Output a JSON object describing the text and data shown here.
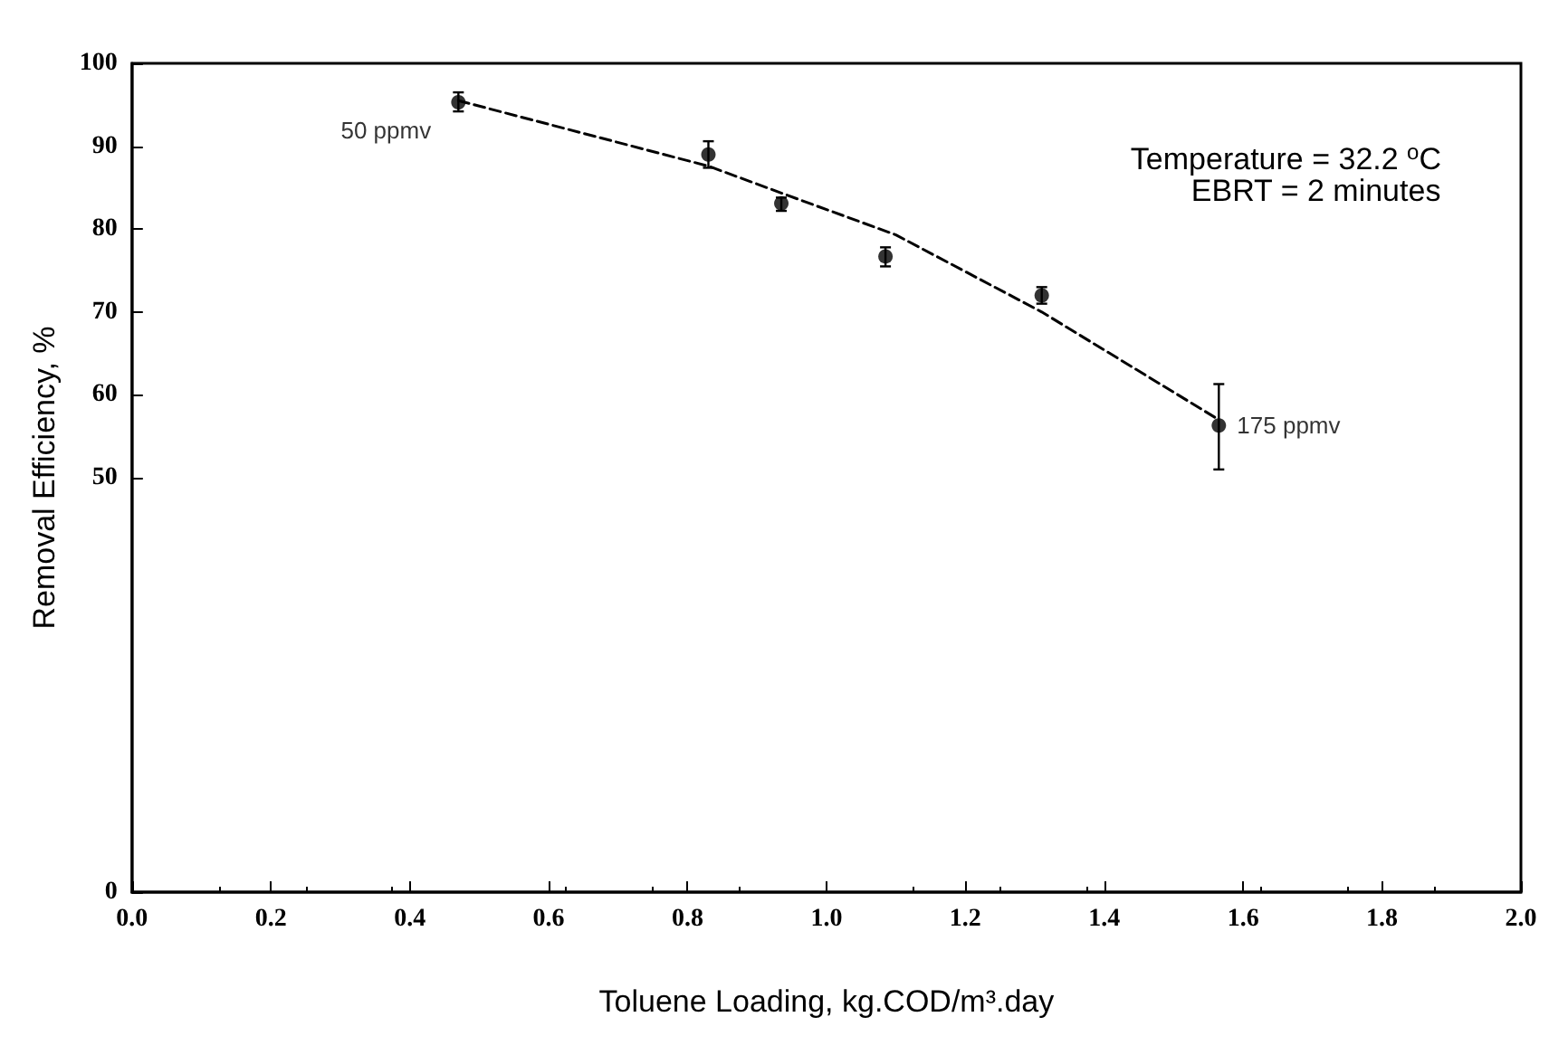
{
  "chart_data": {
    "type": "scatter",
    "xlabel": "Toluene Loading, kg.COD/m³.day",
    "ylabel": "Removal Efficiency, %",
    "xlim": [
      0,
      2
    ],
    "xticks": [
      {
        "value": 0,
        "label": "0.0"
      },
      0.2,
      0.4,
      0.6,
      0.8,
      {
        "value": 1,
        "label": "1.0"
      },
      1.2,
      1.4,
      1.6,
      1.8,
      {
        "value": 2,
        "label": "2.0"
      }
    ],
    "ylim": [
      0,
      100
    ],
    "yticks": [
      0,
      50,
      60,
      70,
      80,
      90,
      100
    ],
    "grid": false,
    "series": [
      {
        "color": "#000000",
        "marker": "circle",
        "x": [
          0.47,
          0.83,
          0.935,
          1.085,
          1.31,
          1.565
        ],
        "values": [
          95.3,
          89.0,
          83.1,
          76.7,
          72.0,
          56.3
        ],
        "errors": [
          [
            94.2,
            96.5
          ],
          [
            87.4,
            90.6
          ],
          [
            82.2,
            83.8
          ],
          [
            75.5,
            77.8
          ],
          [
            71.0,
            73.0
          ],
          [
            51.0,
            61.3
          ]
        ]
      },
      {
        "type": "line",
        "color": "#000000",
        "marker": "none",
        "line_style": "dashed",
        "x": [
          0.47,
          0.83,
          0.94,
          1.1,
          1.31,
          1.565
        ],
        "values": [
          95.5,
          87.6,
          84.2,
          79.3,
          70.0,
          57.0
        ]
      }
    ],
    "annotations": [
      {
        "text": "50 ppmv",
        "x": 0.47,
        "y": 95.3
      },
      {
        "text": "175 ppmv",
        "x": 1.565,
        "y": 56.3
      },
      "Temperature = 32.2 $^{o}$C",
      "EBRT = 2 minutes"
    ]
  }
}
